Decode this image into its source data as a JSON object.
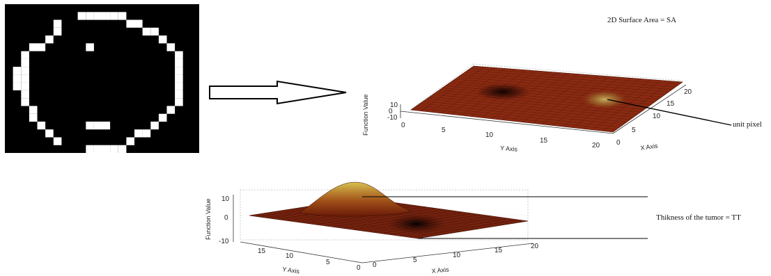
{
  "binary_image": {
    "description_role": "binary segmented tumor image (white boundary pixels on black)"
  },
  "annotations": {
    "surface_area": "2D Surface Area = SA",
    "unit_pixel": "unit pixel",
    "thickness": "Thikness of the tumor  = TT"
  },
  "top_plot": {
    "zlabel": "Function Value",
    "xlabel": "X Axis",
    "ylabel": "Y Axis",
    "z_ticks": [
      "10",
      "0",
      "-10"
    ],
    "y_ticks": [
      "0",
      "5",
      "10",
      "15",
      "20"
    ],
    "x_ticks": [
      "0",
      "5",
      "10",
      "15",
      "20"
    ]
  },
  "bottom_plot": {
    "zlabel": "Function Value",
    "xlabel": "X Axis",
    "ylabel": "Y Axis",
    "z_ticks": [
      "10",
      "0",
      "-10"
    ],
    "y_ticks": [
      "15",
      "10",
      "5",
      "0"
    ],
    "x_ticks": [
      "0",
      "5",
      "10",
      "15",
      "20"
    ]
  },
  "colors": {
    "surface_dark": "#3a0d05",
    "surface_mid": "#8a2a12",
    "surface_light": "#c8a040",
    "arrow_stroke": "#000000"
  },
  "icons": {
    "arrow": "right-arrow-outline"
  }
}
